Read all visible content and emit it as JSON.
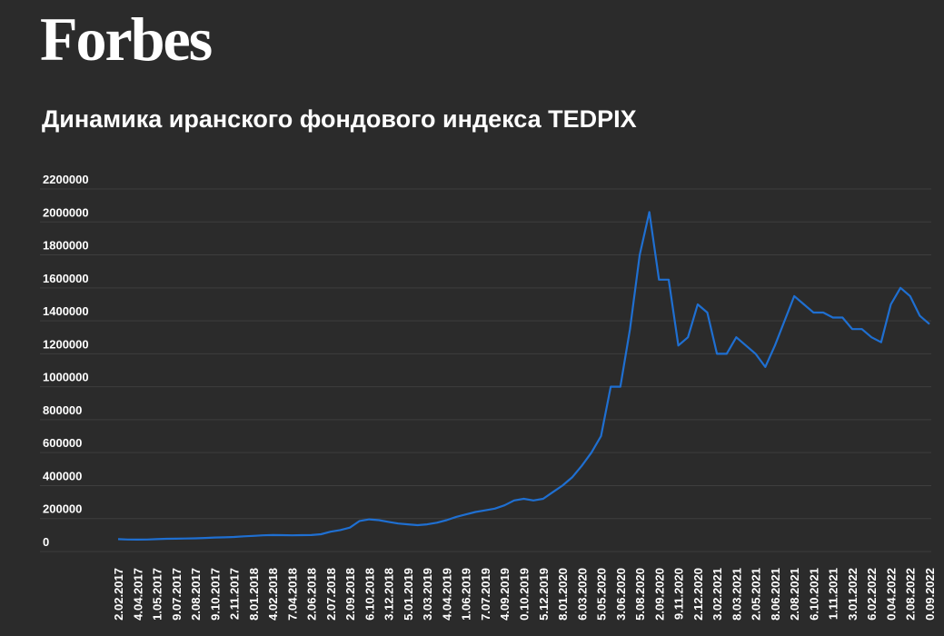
{
  "header": {
    "logo": "Forbes"
  },
  "chart_data": {
    "type": "line",
    "title": "Динамика иранского фондового индекса TEDPIX",
    "categories": [
      "2.02.2017",
      null,
      "4.04.2017",
      null,
      "1.05.2017",
      null,
      "9.07.2017",
      null,
      "2.08.2017",
      null,
      "9.10.2017",
      null,
      "2.11.2017",
      null,
      "8.01.2018",
      null,
      "4.02.2018",
      null,
      "7.04.2018",
      null,
      "2.06.2018",
      null,
      "2.07.2018",
      null,
      "2.09.2018",
      null,
      "6.10.2018",
      null,
      "3.12.2018",
      null,
      "5.01.2019",
      null,
      "3.03.2019",
      null,
      "4.04.2019",
      null,
      "1.06.2019",
      null,
      "7.07.2019",
      null,
      "4.09.2019",
      null,
      "0.10.2019",
      null,
      "5.12.2019",
      null,
      "8.01.2020",
      null,
      "6.03.2020",
      null,
      "5.05.2020",
      null,
      "3.06.2020",
      null,
      "5.08.2020",
      null,
      "2.09.2020",
      null,
      "9.11.2020",
      null,
      "2.12.2020",
      null,
      "3.02.2021",
      null,
      "8.03.2021",
      null,
      "2.05.2021",
      null,
      "8.06.2021",
      null,
      "2.08.2021",
      null,
      "6.10.2021",
      null,
      "1.11.2021",
      null,
      "3.01.2022",
      null,
      "6.02.2022",
      null,
      "0.04.2022",
      null,
      "2.08.2022",
      null,
      "0.09.2022"
    ],
    "series": [
      {
        "name": "TEDPIX",
        "color": "#1f6fd1",
        "values": [
          75000,
          73000,
          72000,
          73000,
          75000,
          77000,
          78000,
          79000,
          80000,
          82000,
          85000,
          86000,
          88000,
          92000,
          95000,
          98000,
          100000,
          99000,
          98000,
          99000,
          100000,
          105000,
          120000,
          130000,
          145000,
          185000,
          195000,
          190000,
          180000,
          170000,
          165000,
          160000,
          165000,
          175000,
          190000,
          210000,
          225000,
          240000,
          250000,
          260000,
          280000,
          310000,
          320000,
          310000,
          320000,
          360000,
          400000,
          450000,
          520000,
          600000,
          700000,
          1000000,
          1000000,
          1350000,
          1800000,
          2060000,
          1650000,
          1650000,
          1250000,
          1300000,
          1500000,
          1450000,
          1200000,
          1200000,
          1300000,
          1250000,
          1200000,
          1120000,
          1250000,
          1400000,
          1550000,
          1500000,
          1450000,
          1450000,
          1420000,
          1420000,
          1350000,
          1350000,
          1300000,
          1270000,
          1500000,
          1600000,
          1550000,
          1430000,
          1380000
        ]
      }
    ],
    "ylim": [
      0,
      2200000
    ],
    "yticks": [
      0,
      200000,
      400000,
      600000,
      800000,
      1000000,
      1200000,
      1400000,
      1600000,
      1800000,
      2000000,
      2200000
    ],
    "grid": true
  }
}
